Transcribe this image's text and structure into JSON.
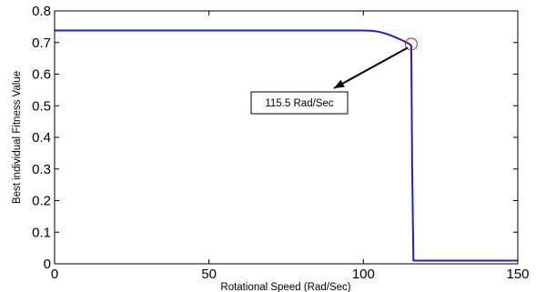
{
  "chart_data": {
    "type": "line",
    "title": "",
    "xlabel": "Rotational Speed (Rad/Sec)",
    "ylabel": "Best individual Fitness Value",
    "xlim": [
      0,
      150
    ],
    "ylim": [
      0,
      0.8
    ],
    "xticks": [
      "0",
      "50",
      "100",
      "150"
    ],
    "yticks": [
      "0",
      "0.1",
      "0.2",
      "0.3",
      "0.4",
      "0.5",
      "0.6",
      "0.7",
      "0.8"
    ],
    "grid": false,
    "legend": "none",
    "series": [
      {
        "color": "#1f1fd6",
        "x": [
          0,
          100,
          103,
          105,
          107,
          109,
          111,
          113,
          115,
          115.5,
          115.8,
          116.2,
          150
        ],
        "y": [
          0.738,
          0.738,
          0.737,
          0.734,
          0.729,
          0.722,
          0.714,
          0.705,
          0.695,
          0.69,
          0.3,
          0.01,
          0.01
        ]
      }
    ],
    "annotation": {
      "text": "115.5 Rad/Sec",
      "point": {
        "x": 115.5,
        "y": 0.695
      },
      "marker_color": "#d62020"
    }
  }
}
